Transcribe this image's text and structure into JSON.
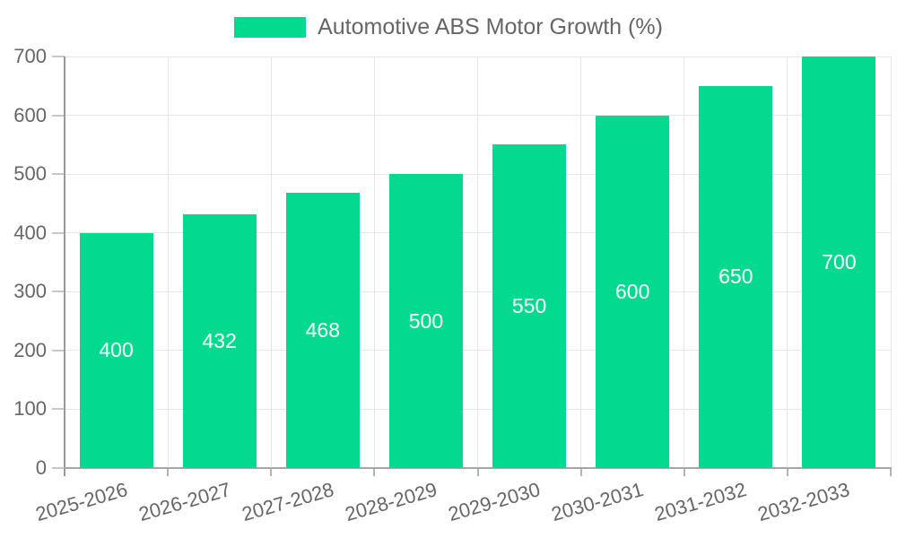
{
  "legend": {
    "label": "Automotive ABS Motor Growth (%)",
    "swatch_color": "#04da8f"
  },
  "chart_data": {
    "type": "bar",
    "title": "",
    "xlabel": "",
    "ylabel": "",
    "categories": [
      "2025-2026",
      "2026-2027",
      "2027-2028",
      "2028-2029",
      "2029-2030",
      "2030-2031",
      "2031-2032",
      "2032-2033"
    ],
    "values": [
      400,
      432,
      468,
      500,
      550,
      600,
      650,
      700
    ],
    "series_name": "Automotive ABS Motor Growth (%)",
    "ylim": [
      0,
      700
    ],
    "yticks": [
      0,
      100,
      200,
      300,
      400,
      500,
      600,
      700
    ],
    "grid": true,
    "legend_position": "top",
    "bar_labels_inside": true
  },
  "colors": {
    "bar": "#04da8f",
    "grid": "#e6e6e6",
    "axis": "#999999",
    "tick": "#c7c7c7",
    "text": "#666666",
    "bar_label": "#ffffff",
    "background": "#ffffff"
  }
}
